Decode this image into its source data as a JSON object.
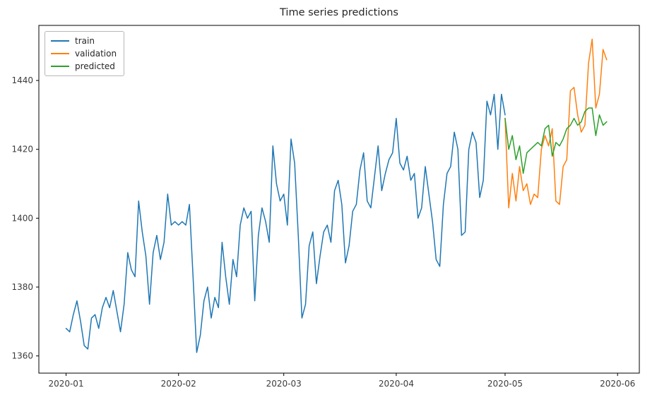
{
  "chart_data": {
    "type": "line",
    "title": "Time series predictions",
    "grid": false,
    "legend_position": "upper left",
    "x_axis": {
      "epoch": "2020-01-01",
      "tick_labels": [
        "2020-01",
        "2020-02",
        "2020-03",
        "2020-04",
        "2020-05",
        "2020-06"
      ],
      "tick_days": [
        0,
        31,
        60,
        91,
        121,
        152
      ]
    },
    "y_axis": {
      "ticks": [
        1360,
        1380,
        1400,
        1420,
        1440
      ]
    },
    "xlim_days": [
      -7.5,
      158
    ],
    "ylim": [
      1355,
      1456
    ],
    "axis_color": "#000000",
    "tick_label_color": "#3b3b3b",
    "series": [
      {
        "name": "train",
        "color": "#1f77b4",
        "start_day": 0,
        "values": [
          1368,
          1367,
          1372,
          1376,
          1370,
          1363,
          1362,
          1371,
          1372,
          1368,
          1374,
          1377,
          1374,
          1379,
          1373,
          1367,
          1375,
          1390,
          1385,
          1383,
          1405,
          1396,
          1389,
          1375,
          1390,
          1395,
          1388,
          1393,
          1407,
          1398,
          1399,
          1398,
          1399,
          1398,
          1404,
          1383,
          1361,
          1366,
          1376,
          1380,
          1371,
          1377,
          1374,
          1393,
          1383,
          1375,
          1388,
          1383,
          1398,
          1403,
          1400,
          1402,
          1376,
          1395,
          1403,
          1399,
          1393,
          1421,
          1410,
          1405,
          1407,
          1398,
          1423,
          1416,
          1395,
          1371,
          1375,
          1392,
          1396,
          1381,
          1389,
          1396,
          1398,
          1393,
          1408,
          1411,
          1404,
          1387,
          1392,
          1402,
          1404,
          1414,
          1419,
          1405,
          1403,
          1412,
          1421,
          1408,
          1413,
          1417,
          1419,
          1429,
          1416,
          1414,
          1418,
          1411,
          1413,
          1400,
          1403,
          1415,
          1407,
          1399,
          1388,
          1386,
          1404,
          1413,
          1415,
          1425,
          1420,
          1395,
          1396,
          1420,
          1425,
          1422,
          1406,
          1411,
          1434,
          1430,
          1436,
          1420,
          1436,
          1430
        ]
      },
      {
        "name": "validation",
        "color": "#ff7f0e",
        "start_day": 121,
        "values": [
          1429,
          1403,
          1413,
          1405,
          1415,
          1408,
          1410,
          1404,
          1407,
          1406,
          1420,
          1424,
          1421,
          1426,
          1405,
          1404,
          1415,
          1417,
          1437,
          1438,
          1430,
          1425,
          1427,
          1445,
          1452,
          1432,
          1436,
          1449,
          1446
        ]
      },
      {
        "name": "predicted",
        "color": "#2ca02c",
        "start_day": 121,
        "values": [
          1429,
          1420,
          1424,
          1417,
          1421,
          1413,
          1419,
          1420,
          1421,
          1422,
          1421,
          1426,
          1427,
          1418,
          1422,
          1421,
          1423,
          1426,
          1427,
          1429,
          1427,
          1428,
          1431,
          1432,
          1432,
          1424,
          1430,
          1427,
          1428
        ]
      }
    ]
  }
}
